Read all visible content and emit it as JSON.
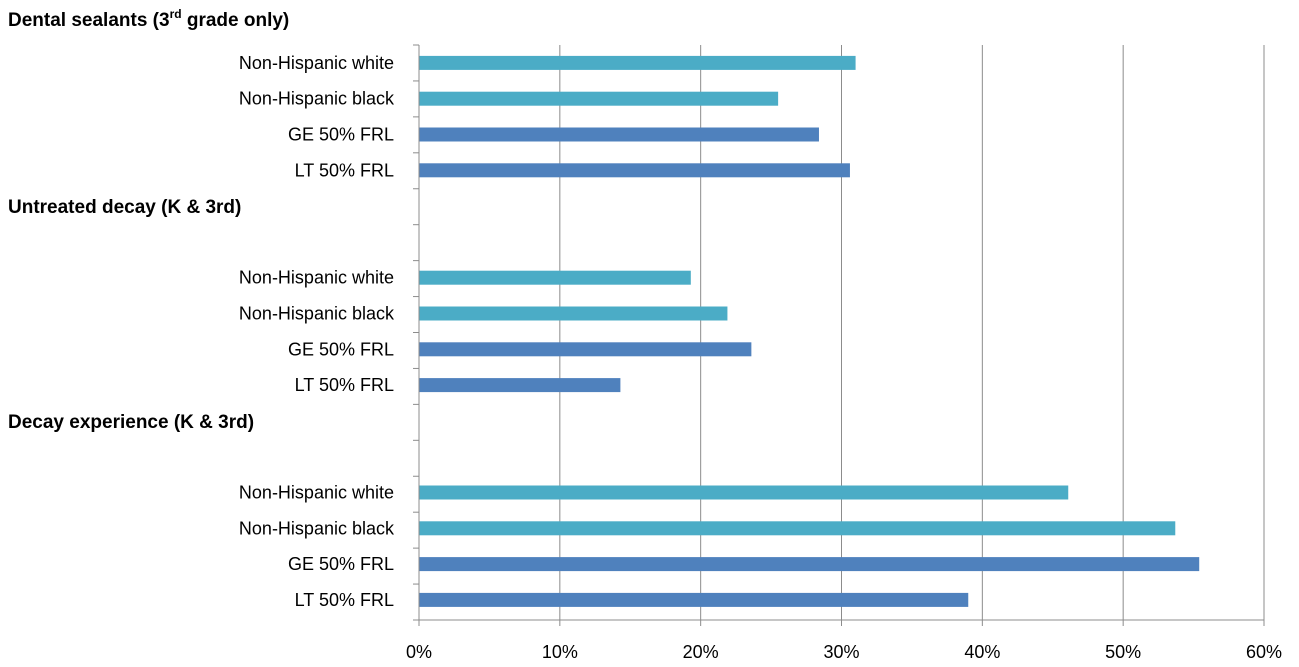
{
  "chart_data": {
    "type": "bar",
    "orientation": "horizontal",
    "title": "",
    "xlabel": "",
    "ylabel": "",
    "xlim": [
      0,
      0.6
    ],
    "x_ticks": [
      0,
      0.1,
      0.2,
      0.3,
      0.4,
      0.5,
      0.6
    ],
    "x_tick_labels": [
      "0%",
      "10%",
      "20%",
      "30%",
      "40%",
      "50%",
      "60%"
    ],
    "grid": "vertical",
    "legend": "none",
    "colors": {
      "race": "#4BACC6",
      "frl": "#4F81BD"
    },
    "groups": [
      {
        "label": "Dental sealants (3",
        "label_sup": "rd",
        "label_after": " grade only)",
        "bars": [
          {
            "name": "Non-Hispanic white",
            "value": 0.31,
            "color_key": "race"
          },
          {
            "name": "Non-Hispanic black",
            "value": 0.255,
            "color_key": "race"
          },
          {
            "name": "GE 50% FRL",
            "value": 0.284,
            "color_key": "frl"
          },
          {
            "name": "LT 50% FRL",
            "value": 0.306,
            "color_key": "frl"
          }
        ]
      },
      {
        "label": "Untreated decay (K & 3rd)",
        "label_sup": "",
        "label_after": "",
        "bars": [
          {
            "name": "Non-Hispanic white",
            "value": 0.193,
            "color_key": "race"
          },
          {
            "name": "Non-Hispanic black",
            "value": 0.219,
            "color_key": "race"
          },
          {
            "name": "GE 50% FRL",
            "value": 0.236,
            "color_key": "frl"
          },
          {
            "name": "LT 50% FRL",
            "value": 0.143,
            "color_key": "frl"
          }
        ]
      },
      {
        "label": "Decay experience (K & 3rd)",
        "label_sup": "",
        "label_after": "",
        "bars": [
          {
            "name": "Non-Hispanic white",
            "value": 0.461,
            "color_key": "race"
          },
          {
            "name": "Non-Hispanic black",
            "value": 0.537,
            "color_key": "race"
          },
          {
            "name": "GE 50% FRL",
            "value": 0.554,
            "color_key": "frl"
          },
          {
            "name": "LT 50% FRL",
            "value": 0.39,
            "color_key": "frl"
          }
        ]
      }
    ]
  }
}
